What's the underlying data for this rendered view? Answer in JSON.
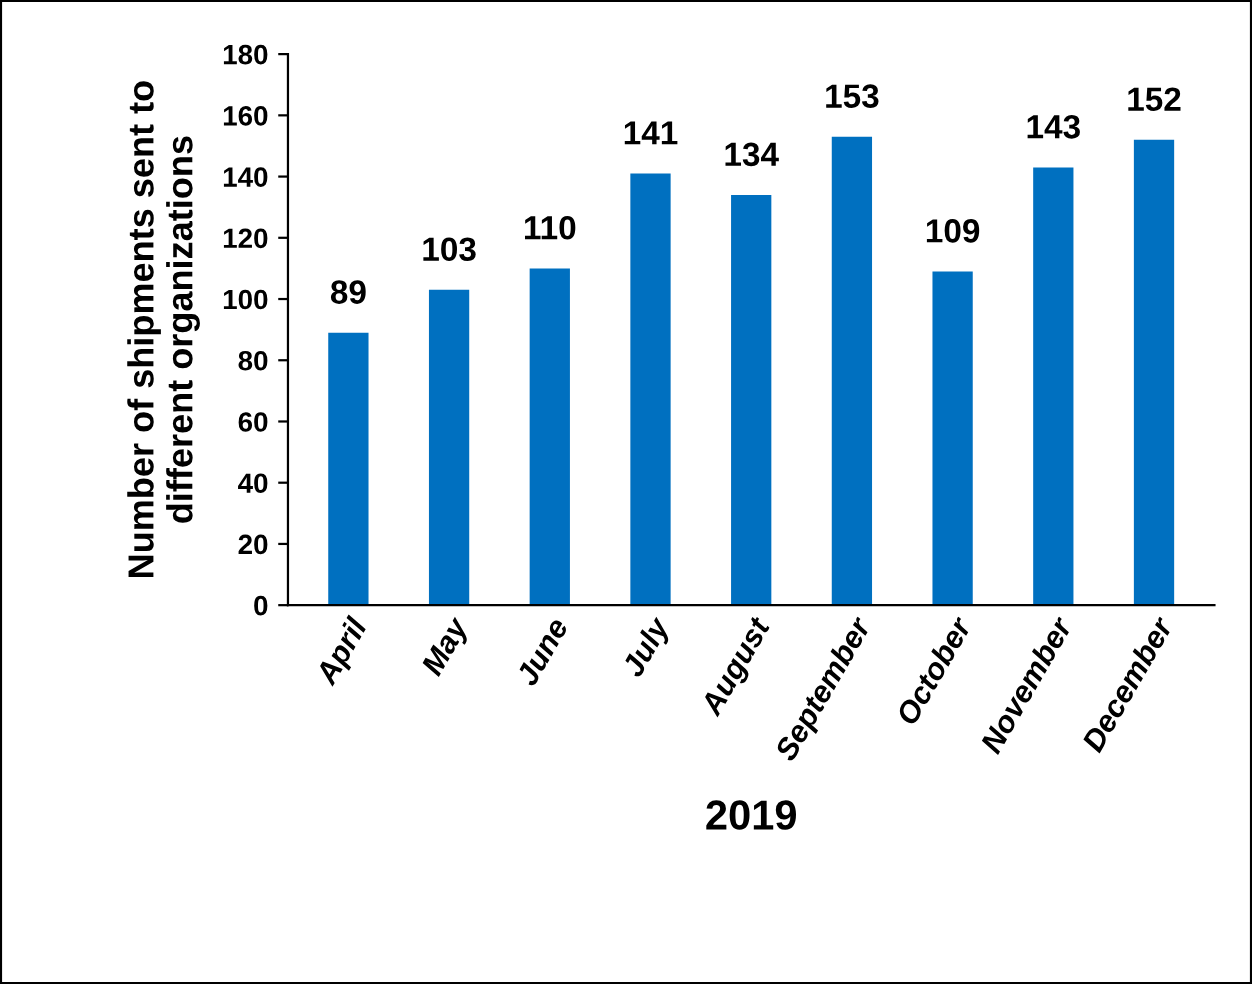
{
  "chart_data": {
    "type": "bar",
    "xlabel": "2019",
    "ylabel": "Number of shipments sent to\ndifferent organizations",
    "categories": [
      "April",
      "May",
      "June",
      "July",
      "August",
      "September",
      "October",
      "November",
      "December"
    ],
    "values": [
      89,
      103,
      110,
      141,
      134,
      153,
      109,
      143,
      152
    ],
    "color": "#0070c0",
    "ylim": [
      0,
      180
    ],
    "yticks": [
      0,
      20,
      40,
      60,
      80,
      100,
      120,
      140,
      160,
      180
    ],
    "grid": false,
    "data_labels": true,
    "legend": false
  }
}
